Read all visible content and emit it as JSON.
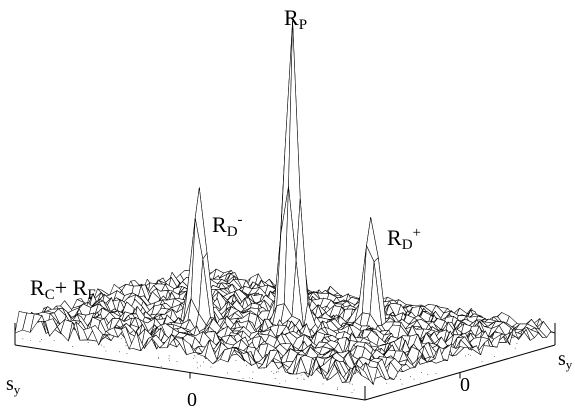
{
  "peaks": {
    "rp": {
      "main": "R",
      "sub": "P",
      "sup": ""
    },
    "rd_minus": {
      "main": "R",
      "sub": "D",
      "sup": "-"
    },
    "rd_plus": {
      "main": "R",
      "sub": "D",
      "sup": "+"
    },
    "rc_rf": {
      "main1": "R",
      "sub1": "C",
      "plus": "+ ",
      "main2": "R",
      "sub2": "F"
    }
  },
  "axes": {
    "left": {
      "main": "s",
      "sub": "y",
      "tick": "0"
    },
    "right": {
      "main": "s",
      "sub": "y",
      "tick": "0"
    }
  },
  "colors": {
    "line": "#000000",
    "background": "#ffffff"
  }
}
